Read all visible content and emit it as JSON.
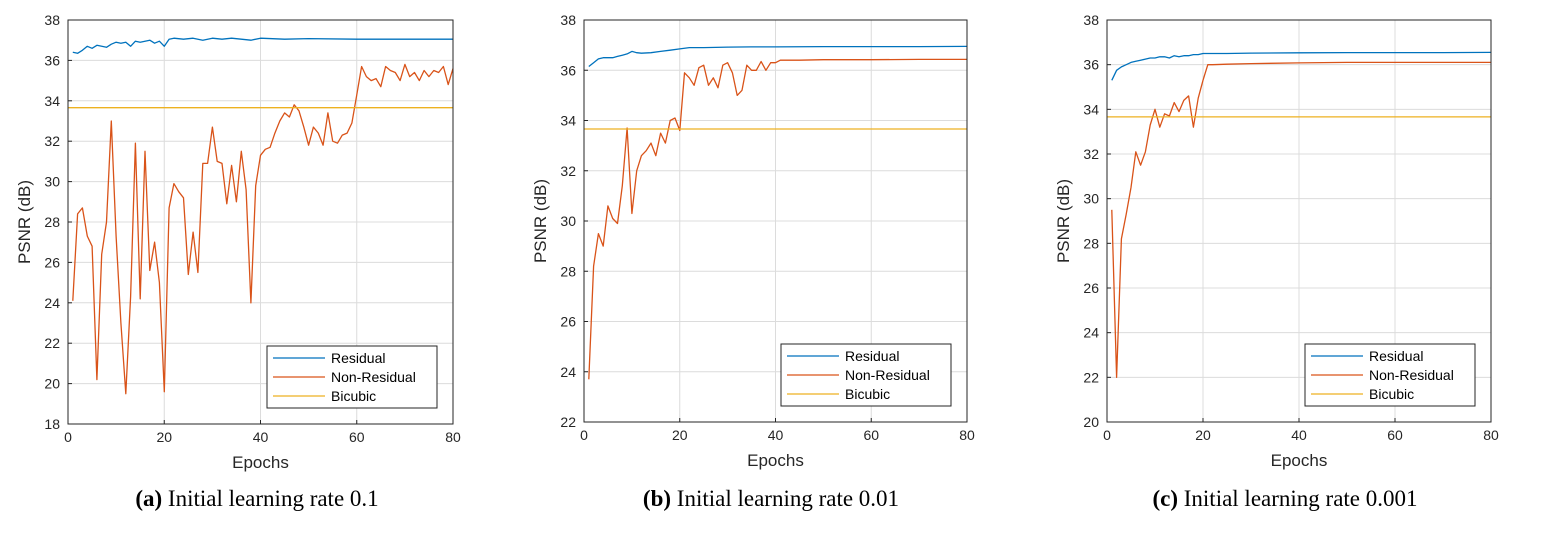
{
  "colors": {
    "residual": "#0072BD",
    "non_residual": "#D95319",
    "bicubic": "#EDB120",
    "grid": "#dcdcdc",
    "axis": "#262626"
  },
  "captions": [
    {
      "label": "(a)",
      "text": "Initial learning rate 0.1"
    },
    {
      "label": "(b)",
      "text": "Initial learning rate 0.01"
    },
    {
      "label": "(c)",
      "text": "Initial learning rate 0.001"
    }
  ],
  "chart_data": [
    {
      "type": "line",
      "xlabel": "Epochs",
      "ylabel": "PSNR (dB)",
      "xlim": [
        0,
        80
      ],
      "ylim": [
        18,
        38
      ],
      "xticks": [
        0,
        20,
        40,
        60,
        80
      ],
      "yticks": [
        18,
        20,
        22,
        24,
        26,
        28,
        30,
        32,
        34,
        36,
        38
      ],
      "grid": true,
      "legend_position": "bottom-right",
      "series": [
        {
          "name": "Residual",
          "color": "#0072BD",
          "x": [
            1,
            2,
            3,
            4,
            5,
            6,
            7,
            8,
            9,
            10,
            11,
            12,
            13,
            14,
            15,
            16,
            17,
            18,
            19,
            20,
            21,
            22,
            24,
            26,
            28,
            30,
            32,
            34,
            36,
            38,
            40,
            45,
            50,
            60,
            70,
            80
          ],
          "y": [
            36.4,
            36.35,
            36.5,
            36.7,
            36.6,
            36.75,
            36.7,
            36.65,
            36.8,
            36.9,
            36.85,
            36.9,
            36.7,
            36.95,
            36.9,
            36.95,
            37.0,
            36.85,
            36.95,
            36.7,
            37.05,
            37.1,
            37.05,
            37.1,
            37.0,
            37.1,
            37.05,
            37.1,
            37.05,
            37.0,
            37.1,
            37.05,
            37.08,
            37.05,
            37.05,
            37.05
          ]
        },
        {
          "name": "Non-Residual",
          "color": "#D95319",
          "x": [
            1,
            2,
            3,
            4,
            5,
            6,
            7,
            8,
            9,
            10,
            11,
            12,
            13,
            14,
            15,
            16,
            17,
            18,
            19,
            20,
            21,
            22,
            23,
            24,
            25,
            26,
            27,
            28,
            29,
            30,
            31,
            32,
            33,
            34,
            35,
            36,
            37,
            38,
            39,
            40,
            41,
            42,
            43,
            44,
            45,
            46,
            47,
            48,
            49,
            50,
            51,
            52,
            53,
            54,
            55,
            56,
            57,
            58,
            59,
            60,
            61,
            62,
            63,
            64,
            65,
            66,
            67,
            68,
            69,
            70,
            71,
            72,
            73,
            74,
            75,
            76,
            77,
            78,
            79,
            80
          ],
          "y": [
            24.1,
            28.4,
            28.7,
            27.3,
            26.8,
            20.2,
            26.4,
            28.0,
            33.0,
            27.3,
            23.0,
            19.5,
            24.3,
            31.9,
            24.2,
            31.5,
            25.6,
            27.0,
            25.0,
            19.6,
            28.7,
            29.9,
            29.5,
            29.2,
            25.4,
            27.5,
            25.5,
            30.9,
            30.9,
            32.7,
            31.0,
            30.9,
            28.9,
            30.8,
            29.0,
            31.5,
            29.6,
            24.0,
            29.8,
            31.3,
            31.6,
            31.7,
            32.4,
            33.0,
            33.4,
            33.2,
            33.8,
            33.5,
            32.7,
            31.8,
            32.7,
            32.4,
            31.8,
            33.4,
            32.0,
            31.9,
            32.3,
            32.4,
            32.9,
            34.3,
            35.7,
            35.2,
            35.0,
            35.1,
            34.7,
            35.7,
            35.5,
            35.4,
            35.0,
            35.8,
            35.2,
            35.4,
            35.0,
            35.5,
            35.2,
            35.5,
            35.4,
            35.7,
            34.8,
            35.6
          ]
        },
        {
          "name": "Bicubic",
          "color": "#EDB120",
          "x": [
            0,
            80
          ],
          "y": [
            33.66,
            33.66
          ]
        }
      ]
    },
    {
      "type": "line",
      "xlabel": "Epochs",
      "ylabel": "PSNR (dB)",
      "xlim": [
        0,
        80
      ],
      "ylim": [
        22,
        38
      ],
      "xticks": [
        0,
        20,
        40,
        60,
        80
      ],
      "yticks": [
        22,
        24,
        26,
        28,
        30,
        32,
        34,
        36,
        38
      ],
      "grid": true,
      "legend_position": "bottom-right",
      "series": [
        {
          "name": "Residual",
          "color": "#0072BD",
          "x": [
            1,
            2,
            3,
            4,
            5,
            6,
            7,
            8,
            9,
            10,
            11,
            12,
            14,
            16,
            18,
            20,
            22,
            25,
            30,
            35,
            40,
            50,
            60,
            70,
            80
          ],
          "y": [
            36.15,
            36.3,
            36.45,
            36.5,
            36.5,
            36.5,
            36.55,
            36.6,
            36.65,
            36.75,
            36.7,
            36.68,
            36.7,
            36.75,
            36.8,
            36.85,
            36.9,
            36.9,
            36.92,
            36.93,
            36.93,
            36.94,
            36.94,
            36.94,
            36.95
          ]
        },
        {
          "name": "Non-Residual",
          "color": "#D95319",
          "x": [
            1,
            2,
            3,
            4,
            5,
            6,
            7,
            8,
            9,
            10,
            11,
            12,
            13,
            14,
            15,
            16,
            17,
            18,
            19,
            20,
            21,
            22,
            23,
            24,
            25,
            26,
            27,
            28,
            29,
            30,
            31,
            32,
            33,
            34,
            35,
            36,
            37,
            38,
            39,
            40,
            41,
            42,
            45,
            50,
            60,
            70,
            80
          ],
          "y": [
            23.7,
            28.2,
            29.5,
            29.0,
            30.6,
            30.1,
            29.9,
            31.4,
            33.7,
            30.3,
            32.0,
            32.6,
            32.8,
            33.1,
            32.6,
            33.5,
            33.1,
            34.0,
            34.1,
            33.6,
            35.9,
            35.7,
            35.4,
            36.1,
            36.2,
            35.4,
            35.7,
            35.3,
            36.2,
            36.3,
            35.9,
            35.0,
            35.2,
            36.2,
            36.0,
            36.0,
            36.35,
            36.0,
            36.3,
            36.3,
            36.4,
            36.4,
            36.4,
            36.42,
            36.42,
            36.43,
            36.43
          ]
        },
        {
          "name": "Bicubic",
          "color": "#EDB120",
          "x": [
            0,
            80
          ],
          "y": [
            33.66,
            33.66
          ]
        }
      ]
    },
    {
      "type": "line",
      "xlabel": "Epochs",
      "ylabel": "PSNR (dB)",
      "xlim": [
        0,
        80
      ],
      "ylim": [
        20,
        38
      ],
      "xticks": [
        0,
        20,
        40,
        60,
        80
      ],
      "yticks": [
        20,
        22,
        24,
        26,
        28,
        30,
        32,
        34,
        36,
        38
      ],
      "grid": true,
      "legend_position": "bottom-right",
      "series": [
        {
          "name": "Residual",
          "color": "#0072BD",
          "x": [
            1,
            2,
            3,
            4,
            5,
            6,
            7,
            8,
            9,
            10,
            11,
            12,
            13,
            14,
            15,
            16,
            17,
            18,
            19,
            20,
            22,
            25,
            30,
            40,
            50,
            60,
            70,
            80
          ],
          "y": [
            35.3,
            35.75,
            35.9,
            36.0,
            36.1,
            36.15,
            36.2,
            36.25,
            36.3,
            36.3,
            36.35,
            36.35,
            36.3,
            36.4,
            36.35,
            36.4,
            36.4,
            36.45,
            36.45,
            36.5,
            36.5,
            36.5,
            36.52,
            36.53,
            36.54,
            36.54,
            36.54,
            36.55
          ]
        },
        {
          "name": "Non-Residual",
          "color": "#D95319",
          "x": [
            1,
            2,
            3,
            4,
            5,
            6,
            7,
            8,
            9,
            10,
            11,
            12,
            13,
            14,
            15,
            16,
            17,
            18,
            19,
            20,
            21,
            22,
            25,
            30,
            40,
            50,
            60,
            70,
            80
          ],
          "y": [
            29.5,
            22.0,
            28.2,
            29.3,
            30.5,
            32.1,
            31.5,
            32.1,
            33.3,
            34.0,
            33.2,
            33.8,
            33.7,
            34.3,
            33.9,
            34.4,
            34.6,
            33.2,
            34.5,
            35.3,
            36.0,
            36.0,
            36.02,
            36.05,
            36.08,
            36.1,
            36.1,
            36.1,
            36.1
          ]
        },
        {
          "name": "Bicubic",
          "color": "#EDB120",
          "x": [
            0,
            80
          ],
          "y": [
            33.66,
            33.66
          ]
        }
      ]
    }
  ]
}
